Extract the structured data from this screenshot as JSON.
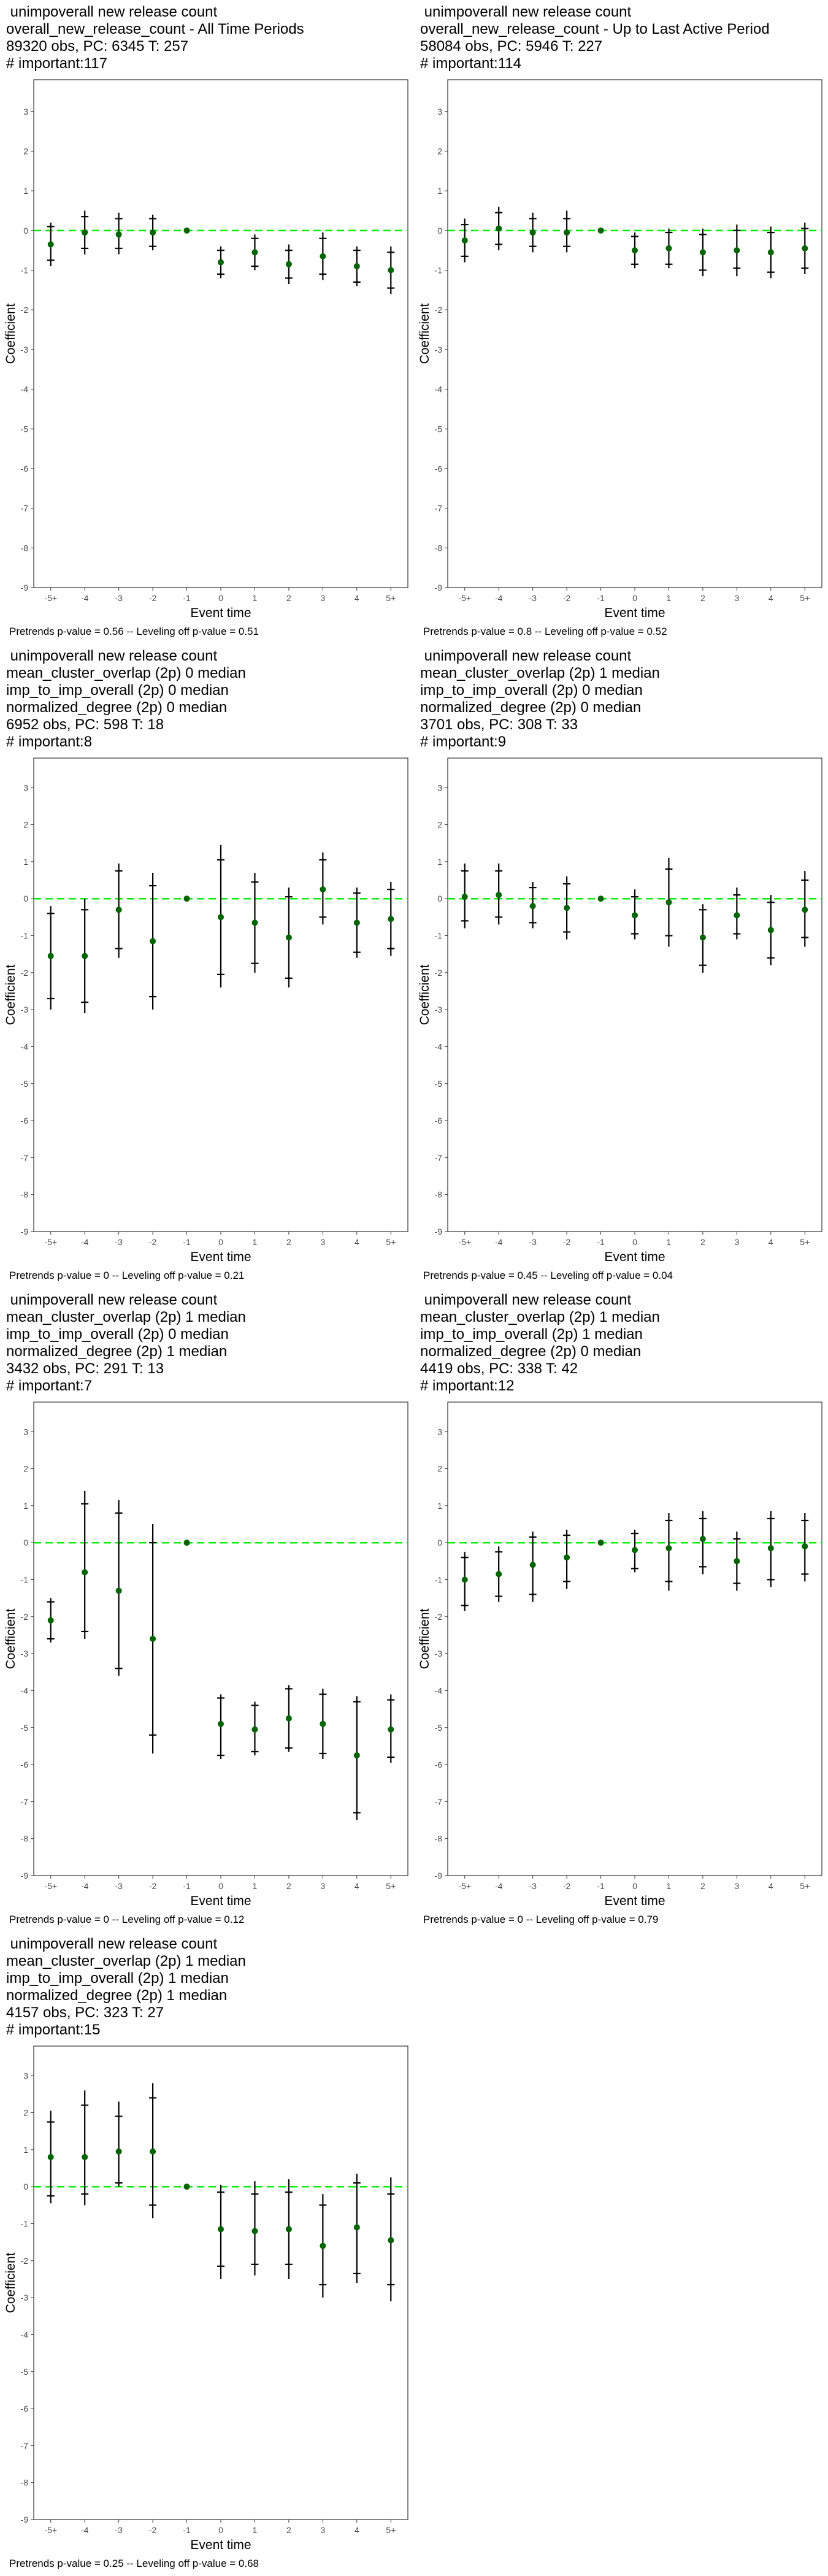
{
  "axis": {
    "xlabel": "Event time",
    "ylabel": "Coefficient",
    "ylim": [
      -9,
      3.8
    ],
    "yticks": [
      3,
      2,
      1,
      0,
      -1,
      -2,
      -3,
      -4,
      -5,
      -6,
      -7,
      -8,
      -9
    ],
    "xticks": [
      "-5+",
      "-4",
      "-3",
      "-2",
      "-1",
      "0",
      "1",
      "2",
      "3",
      "4",
      "5+"
    ],
    "zero_line_color": "#00ee00",
    "point_color": "#006400"
  },
  "chart_data": [
    {
      "type": "scatter",
      "title_lines": [
        " unimpoverall new release count",
        "overall_new_release_count - All Time Periods",
        "89320 obs, PC: 6345 T: 257",
        "# important:117"
      ],
      "footnote": "Pretrends p-value = 0.56 -- Leveling off p-value = 0.51",
      "x": [
        "-5+",
        "-4",
        "-3",
        "-2",
        "-1",
        "0",
        "1",
        "2",
        "3",
        "4",
        "5+"
      ],
      "coef": [
        -0.35,
        -0.05,
        -0.1,
        -0.05,
        0,
        -0.8,
        -0.55,
        -0.85,
        -0.65,
        -0.9,
        -1.0
      ],
      "ci95_low": [
        -0.9,
        -0.6,
        -0.6,
        -0.5,
        0,
        -1.2,
        -1.0,
        -1.35,
        -1.25,
        -1.4,
        -1.6
      ],
      "ci95_high": [
        0.2,
        0.5,
        0.45,
        0.4,
        0,
        -0.4,
        -0.1,
        -0.35,
        -0.05,
        -0.4,
        -0.4
      ],
      "ci90_low": [
        -0.75,
        -0.45,
        -0.45,
        -0.4,
        0,
        -1.1,
        -0.9,
        -1.2,
        -1.1,
        -1.3,
        -1.45
      ],
      "ci90_high": [
        0.1,
        0.35,
        0.3,
        0.3,
        0,
        -0.5,
        -0.2,
        -0.5,
        -0.2,
        -0.5,
        -0.55
      ]
    },
    {
      "type": "scatter",
      "title_lines": [
        " unimpoverall new release count",
        "overall_new_release_count - Up to Last Active Period",
        "58084 obs, PC: 5946 T: 227",
        "# important:114"
      ],
      "footnote": "Pretrends p-value = 0.8 -- Leveling off p-value = 0.52",
      "x": [
        "-5+",
        "-4",
        "-3",
        "-2",
        "-1",
        "0",
        "1",
        "2",
        "3",
        "4",
        "5+"
      ],
      "coef": [
        -0.25,
        0.05,
        -0.05,
        -0.05,
        0,
        -0.5,
        -0.45,
        -0.55,
        -0.5,
        -0.55,
        -0.45
      ],
      "ci95_low": [
        -0.8,
        -0.5,
        -0.55,
        -0.55,
        0,
        -0.95,
        -0.95,
        -1.15,
        -1.15,
        -1.2,
        -1.1
      ],
      "ci95_high": [
        0.3,
        0.6,
        0.45,
        0.5,
        0,
        -0.05,
        0.05,
        0.05,
        0.15,
        0.1,
        0.2
      ],
      "ci90_low": [
        -0.65,
        -0.35,
        -0.4,
        -0.4,
        0,
        -0.85,
        -0.85,
        -1.0,
        -0.95,
        -1.05,
        -0.95
      ],
      "ci90_high": [
        0.15,
        0.45,
        0.3,
        0.3,
        0,
        -0.15,
        -0.05,
        -0.1,
        0.0,
        -0.05,
        0.05
      ]
    },
    {
      "type": "scatter",
      "title_lines": [
        " unimpoverall new release count",
        "mean_cluster_overlap (2p) 0 median",
        "imp_to_imp_overall (2p) 0 median",
        "normalized_degree (2p) 0 median",
        "6952 obs, PC: 598 T: 18",
        "# important:8"
      ],
      "footnote": "Pretrends p-value = 0 -- Leveling off p-value = 0.21",
      "x": [
        "-5+",
        "-4",
        "-3",
        "-2",
        "-1",
        "0",
        "1",
        "2",
        "3",
        "4",
        "5+"
      ],
      "coef": [
        -1.55,
        -1.55,
        -0.3,
        -1.15,
        0,
        -0.5,
        -0.65,
        -1.05,
        0.25,
        -0.65,
        -0.55
      ],
      "ci95_low": [
        -3.0,
        -3.1,
        -1.6,
        -3.0,
        0,
        -2.4,
        -2.0,
        -2.4,
        -0.7,
        -1.6,
        -1.55
      ],
      "ci95_high": [
        -0.2,
        0.0,
        0.95,
        0.7,
        0,
        1.45,
        0.7,
        0.3,
        1.25,
        0.3,
        0.45
      ],
      "ci90_low": [
        -2.7,
        -2.8,
        -1.35,
        -2.65,
        0,
        -2.05,
        -1.75,
        -2.15,
        -0.5,
        -1.45,
        -1.35
      ],
      "ci90_high": [
        -0.4,
        -0.3,
        0.75,
        0.35,
        0,
        1.05,
        0.45,
        0.05,
        1.05,
        0.15,
        0.25
      ]
    },
    {
      "type": "scatter",
      "title_lines": [
        " unimpoverall new release count",
        "mean_cluster_overlap (2p) 1 median",
        "imp_to_imp_overall (2p) 0 median",
        "normalized_degree (2p) 0 median",
        "3701 obs, PC: 308 T: 33",
        "# important:9"
      ],
      "footnote": "Pretrends p-value = 0.45 -- Leveling off p-value = 0.04",
      "x": [
        "-5+",
        "-4",
        "-3",
        "-2",
        "-1",
        "0",
        "1",
        "2",
        "3",
        "4",
        "5+"
      ],
      "coef": [
        0.05,
        0.1,
        -0.2,
        -0.25,
        0,
        -0.45,
        -0.1,
        -1.05,
        -0.45,
        -0.85,
        -0.3
      ],
      "ci95_low": [
        -0.8,
        -0.7,
        -0.8,
        -1.1,
        0,
        -1.1,
        -1.3,
        -2.0,
        -1.1,
        -1.8,
        -1.3
      ],
      "ci95_high": [
        0.95,
        0.95,
        0.45,
        0.6,
        0,
        0.25,
        1.1,
        -0.15,
        0.3,
        0.1,
        0.75
      ],
      "ci90_low": [
        -0.6,
        -0.5,
        -0.65,
        -0.9,
        0,
        -0.95,
        -1.0,
        -1.8,
        -0.95,
        -1.6,
        -1.05
      ],
      "ci90_high": [
        0.75,
        0.75,
        0.3,
        0.4,
        0,
        0.05,
        0.8,
        -0.3,
        0.1,
        -0.1,
        0.5
      ]
    },
    {
      "type": "scatter",
      "title_lines": [
        " unimpoverall new release count",
        "mean_cluster_overlap (2p) 1 median",
        "imp_to_imp_overall (2p) 0 median",
        "normalized_degree (2p) 1 median",
        "3432 obs, PC: 291 T: 13",
        "# important:7"
      ],
      "footnote": "Pretrends p-value = 0 -- Leveling off p-value = 0.12",
      "x": [
        "-5+",
        "-4",
        "-3",
        "-2",
        "-1",
        "0",
        "1",
        "2",
        "3",
        "4",
        "5+"
      ],
      "coef": [
        -2.1,
        -0.8,
        -1.3,
        -2.6,
        0,
        -4.9,
        -5.05,
        -4.75,
        -4.9,
        -5.75,
        -5.05
      ],
      "ci95_low": [
        -2.7,
        -2.6,
        -3.6,
        -5.7,
        0,
        -5.85,
        -5.75,
        -5.65,
        -5.85,
        -7.5,
        -5.95
      ],
      "ci95_high": [
        -1.5,
        1.4,
        1.15,
        0.5,
        0,
        -4.1,
        -4.3,
        -3.85,
        -3.95,
        -4.15,
        -4.1
      ],
      "ci90_low": [
        -2.6,
        -2.4,
        -3.4,
        -5.2,
        0,
        -5.75,
        -5.65,
        -5.55,
        -5.7,
        -7.3,
        -5.8
      ],
      "ci90_high": [
        -1.6,
        1.05,
        0.8,
        0.0,
        0,
        -4.2,
        -4.4,
        -3.95,
        -4.1,
        -4.3,
        -4.25
      ]
    },
    {
      "type": "scatter",
      "title_lines": [
        " unimpoverall new release count",
        "mean_cluster_overlap (2p) 1 median",
        "imp_to_imp_overall (2p) 1 median",
        "normalized_degree (2p) 0 median",
        "4419 obs, PC: 338 T: 42",
        "# important:12"
      ],
      "footnote": "Pretrends p-value = 0 -- Leveling off p-value = 0.79",
      "x": [
        "-5+",
        "-4",
        "-3",
        "-2",
        "-1",
        "0",
        "1",
        "2",
        "3",
        "4",
        "5+"
      ],
      "coef": [
        -1.0,
        -0.85,
        -0.6,
        -0.4,
        0,
        -0.2,
        -0.15,
        0.1,
        -0.5,
        -0.15,
        -0.1
      ],
      "ci95_low": [
        -1.85,
        -1.6,
        -1.6,
        -1.25,
        0,
        -0.8,
        -1.3,
        -0.85,
        -1.3,
        -1.2,
        -1.05
      ],
      "ci95_high": [
        -0.25,
        -0.1,
        0.3,
        0.35,
        0,
        0.35,
        0.8,
        0.85,
        0.3,
        0.85,
        0.8
      ],
      "ci90_low": [
        -1.7,
        -1.45,
        -1.4,
        -1.05,
        0,
        -0.7,
        -1.05,
        -0.65,
        -1.1,
        -1.0,
        -0.85
      ],
      "ci90_high": [
        -0.4,
        -0.25,
        0.15,
        0.2,
        0,
        0.25,
        0.6,
        0.65,
        0.1,
        0.65,
        0.6
      ]
    },
    {
      "type": "scatter",
      "title_lines": [
        " unimpoverall new release count",
        "mean_cluster_overlap (2p) 1 median",
        "imp_to_imp_overall (2p) 1 median",
        "normalized_degree (2p) 1 median",
        "4157 obs, PC: 323 T: 27",
        "# important:15"
      ],
      "footnote": "Pretrends p-value = 0.25 -- Leveling off p-value = 0.68",
      "x": [
        "-5+",
        "-4",
        "-3",
        "-2",
        "-1",
        "0",
        "1",
        "2",
        "3",
        "4",
        "5+"
      ],
      "coef": [
        0.8,
        0.8,
        0.95,
        0.95,
        0,
        -1.15,
        -1.2,
        -1.15,
        -1.6,
        -1.1,
        -1.45
      ],
      "ci95_low": [
        -0.45,
        -0.5,
        0.0,
        -0.85,
        0,
        -2.5,
        -2.4,
        -2.5,
        -3.0,
        -2.6,
        -3.1
      ],
      "ci95_high": [
        2.05,
        2.6,
        2.3,
        2.8,
        0,
        0.05,
        0.15,
        0.2,
        -0.2,
        0.35,
        0.25
      ],
      "ci90_low": [
        -0.25,
        -0.2,
        0.1,
        -0.5,
        0,
        -2.15,
        -2.1,
        -2.1,
        -2.65,
        -2.35,
        -2.65
      ],
      "ci90_high": [
        1.75,
        2.2,
        1.9,
        2.4,
        0,
        -0.15,
        -0.2,
        -0.15,
        -0.5,
        0.1,
        -0.2
      ]
    }
  ]
}
